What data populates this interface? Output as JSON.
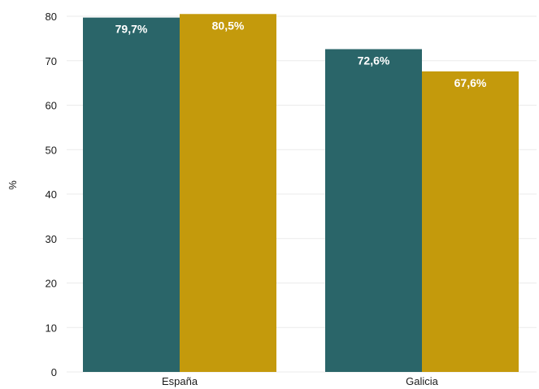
{
  "chart_data": {
    "type": "bar",
    "categories": [
      "España",
      "Galicia"
    ],
    "series": [
      {
        "values": [
          79.7,
          72.6
        ],
        "labels": [
          "79,7%",
          "72,6%"
        ],
        "color": "#2a6569"
      },
      {
        "values": [
          80.5,
          67.6
        ],
        "labels": [
          "80,5%",
          "67,6%"
        ],
        "color": "#c49a0c"
      }
    ],
    "xlabel": "",
    "ylabel": "%",
    "ylim": [
      0,
      80
    ],
    "yticks": [
      "0",
      "10",
      "20",
      "30",
      "40",
      "50",
      "60",
      "70",
      "80"
    ],
    "grid": true,
    "legend": "none"
  }
}
